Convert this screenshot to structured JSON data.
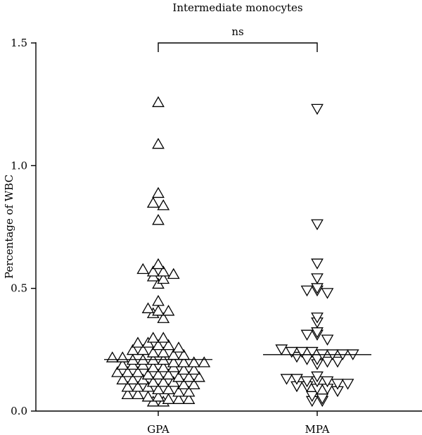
{
  "chart_data": {
    "type": "scatter",
    "title": "Intermediate monocytes",
    "ylabel": "Percentage of WBC",
    "xlabel": "",
    "categories": [
      "GPA",
      "MPA"
    ],
    "ylim": [
      0,
      1.5
    ],
    "yticks": [
      "0.0",
      "0.5",
      "1.0",
      "1.5"
    ],
    "significance": "ns",
    "colors": {
      "marker_fill": "#ffffff",
      "marker_stroke": "#000000"
    },
    "series": [
      {
        "category": "GPA",
        "marker": "triangle-up",
        "median": 0.21,
        "values": [
          1.26,
          1.09,
          0.89,
          0.85,
          0.84,
          0.78,
          0.6,
          0.58,
          0.57,
          0.57,
          0.56,
          0.55,
          0.54,
          0.52,
          0.45,
          0.42,
          0.41,
          0.41,
          0.4,
          0.38,
          0.3,
          0.3,
          0.28,
          0.28,
          0.27,
          0.27,
          0.26,
          0.25,
          0.25,
          0.24,
          0.24,
          0.23,
          0.23,
          0.22,
          0.22,
          0.21,
          0.21,
          0.21,
          0.21,
          0.2,
          0.2,
          0.2,
          0.2,
          0.19,
          0.19,
          0.19,
          0.18,
          0.18,
          0.18,
          0.17,
          0.17,
          0.16,
          0.16,
          0.16,
          0.15,
          0.15,
          0.15,
          0.14,
          0.14,
          0.14,
          0.13,
          0.13,
          0.13,
          0.12,
          0.12,
          0.12,
          0.11,
          0.11,
          0.1,
          0.1,
          0.1,
          0.09,
          0.09,
          0.08,
          0.08,
          0.07,
          0.07,
          0.06,
          0.06,
          0.05,
          0.05,
          0.05,
          0.04,
          0.04
        ]
      },
      {
        "category": "MPA",
        "marker": "triangle-down",
        "median": 0.23,
        "values": [
          1.23,
          0.76,
          0.6,
          0.54,
          0.5,
          0.49,
          0.49,
          0.48,
          0.38,
          0.36,
          0.32,
          0.31,
          0.31,
          0.29,
          0.25,
          0.24,
          0.24,
          0.24,
          0.23,
          0.23,
          0.23,
          0.23,
          0.22,
          0.21,
          0.21,
          0.2,
          0.2,
          0.19,
          0.14,
          0.13,
          0.13,
          0.12,
          0.12,
          0.12,
          0.11,
          0.11,
          0.1,
          0.1,
          0.09,
          0.09,
          0.08,
          0.06,
          0.05,
          0.04,
          0.04
        ]
      }
    ]
  }
}
